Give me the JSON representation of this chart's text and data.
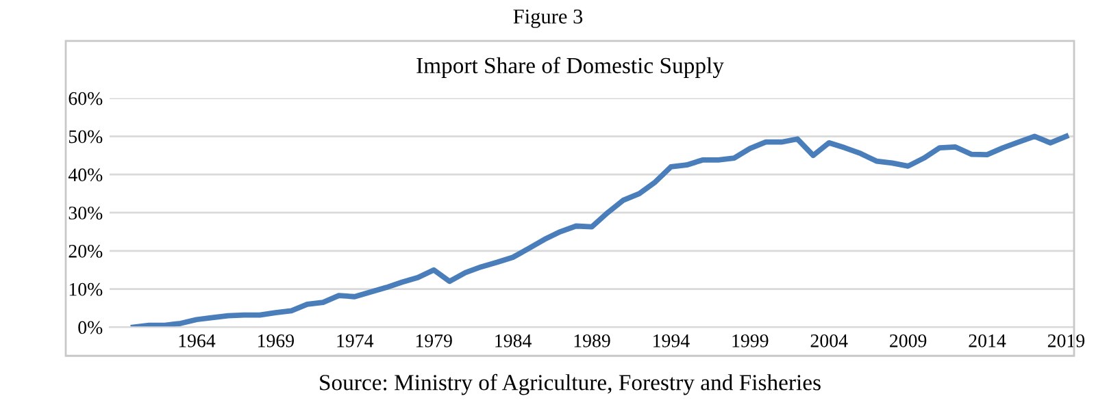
{
  "chart_data": {
    "type": "line",
    "title": "Figure 3",
    "subtitle": "Import Share of Domestic Supply",
    "categories": [
      null,
      null,
      null,
      null,
      "1964",
      null,
      null,
      null,
      null,
      "1969",
      null,
      null,
      null,
      null,
      "1974",
      null,
      null,
      null,
      null,
      "1979",
      null,
      null,
      null,
      null,
      "1984",
      null,
      null,
      null,
      null,
      "1989",
      null,
      null,
      null,
      null,
      "1994",
      null,
      null,
      null,
      null,
      "1999",
      null,
      null,
      null,
      null,
      "2004",
      null,
      null,
      null,
      null,
      "2009",
      null,
      null,
      null,
      null,
      "2014",
      null,
      null,
      null,
      null,
      "2019"
    ],
    "series": [
      {
        "color": "#4a7ebb",
        "values": [
          0,
          0.5,
          0.5,
          1,
          2,
          2.5,
          3,
          3.2,
          3.2,
          3.8,
          4.3,
          6,
          6.5,
          8.3,
          8,
          9.2,
          10.4,
          11.8,
          13,
          15,
          12,
          14.3,
          15.8,
          17,
          18.3,
          20.6,
          23,
          25,
          26.5,
          26.3,
          30,
          33.3,
          35,
          38,
          42,
          42.5,
          43.8,
          43.8,
          44.3,
          46.8,
          48.5,
          48.5,
          49.3,
          45,
          48.3,
          47,
          45.5,
          43.5,
          43,
          42.2,
          44.3,
          47,
          47.2,
          45.3,
          45.2,
          47,
          48.5,
          50,
          48.3,
          50
        ]
      }
    ],
    "ylim": [
      0,
      60
    ],
    "yticks": [
      {
        "value": 0,
        "label": "0%"
      },
      {
        "value": 10,
        "label": "10%"
      },
      {
        "value": 20,
        "label": "20%"
      },
      {
        "value": 30,
        "label": "30%"
      },
      {
        "value": 40,
        "label": "40%"
      },
      {
        "value": 50,
        "label": "50%"
      },
      {
        "value": 60,
        "label": "60%"
      }
    ],
    "grid": "y",
    "marker": "none",
    "line_style": "solid",
    "annotations": [
      "Source: Ministry of Agriculture, Forestry and Fisheries"
    ]
  }
}
